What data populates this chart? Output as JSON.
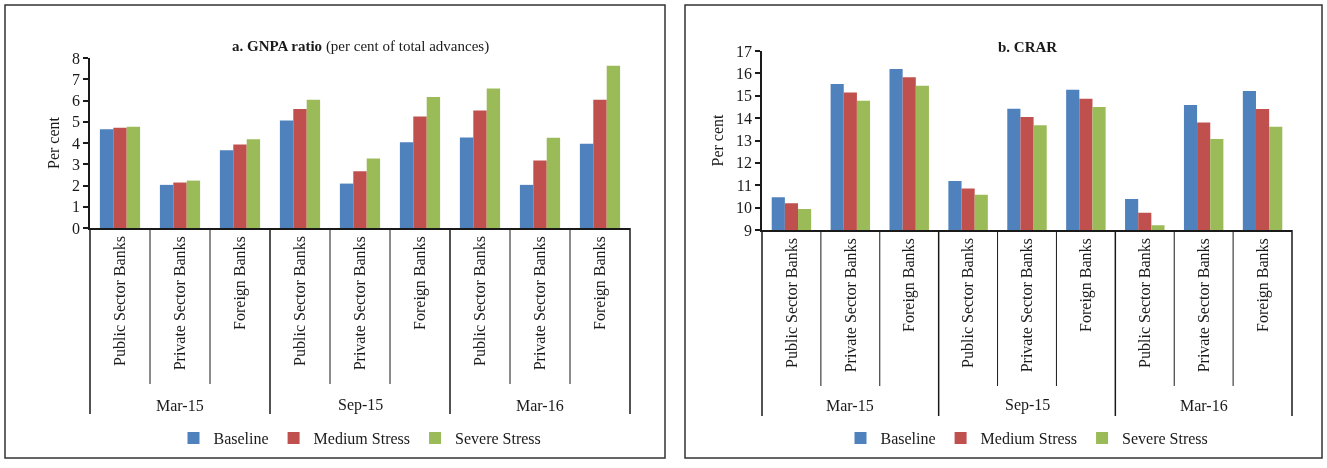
{
  "chart_data": [
    {
      "type": "bar",
      "title": "a. GNPA ratio",
      "subtitle": "(per cent of total advances)",
      "ylabel": "Per cent",
      "categories": [
        "Public Sector Banks",
        "Private Sector Banks",
        "Foreign Banks",
        "Public Sector Banks",
        "Private Sector Banks",
        "Foreign Banks",
        "Public Sector Banks",
        "Private Sector Banks",
        "Foreign Banks"
      ],
      "annotations": [
        "Mar-15",
        "Sep-15",
        "Mar-16"
      ],
      "series": [
        {
          "name": "Baseline",
          "color": "#4f81bd",
          "values": [
            4.65,
            2.03,
            3.66,
            5.06,
            2.09,
            4.04,
            4.26,
            2.03,
            3.96
          ]
        },
        {
          "name": "Medium Stress",
          "color": "#c0504d",
          "values": [
            4.72,
            2.14,
            3.93,
            5.6,
            2.67,
            5.25,
            5.53,
            3.18,
            6.04
          ]
        },
        {
          "name": "Severe Stress",
          "color": "#9bbb59",
          "values": [
            4.76,
            2.23,
            4.18,
            6.04,
            3.27,
            6.16,
            6.57,
            4.25,
            7.63
          ]
        }
      ],
      "ylim": [
        0,
        8
      ],
      "yticks": [
        0,
        1,
        2,
        3,
        4,
        5,
        6,
        7,
        8
      ],
      "grid": false,
      "legend": "bottom"
    },
    {
      "type": "bar",
      "title": "b. CRAR",
      "ylabel": "Per cent",
      "categories": [
        "Public Sector Banks",
        "Private Sector Banks",
        "Foreign Banks",
        "Public Sector Banks",
        "Private Sector Banks",
        "Foreign Banks",
        "Public Sector Banks",
        "Private Sector Banks",
        "Foreign Banks"
      ],
      "annotations": [
        "Mar-15",
        "Sep-15",
        "Mar-16"
      ],
      "series": [
        {
          "name": "Baseline",
          "color": "#4f81bd",
          "values": [
            10.46,
            15.53,
            16.2,
            11.19,
            14.42,
            15.27,
            10.39,
            14.59,
            15.21
          ]
        },
        {
          "name": "Medium Stress",
          "color": "#c0504d",
          "values": [
            10.19,
            15.15,
            15.83,
            10.86,
            14.05,
            14.87,
            9.77,
            13.8,
            14.41
          ]
        },
        {
          "name": "Severe Stress",
          "color": "#9bbb59",
          "values": [
            9.94,
            14.78,
            15.45,
            10.58,
            13.68,
            14.5,
            9.21,
            13.07,
            13.62
          ]
        }
      ],
      "ylim": [
        9,
        17
      ],
      "yticks": [
        9,
        10,
        11,
        12,
        13,
        14,
        15,
        16,
        17
      ],
      "grid": false,
      "legend": "bottom"
    }
  ]
}
